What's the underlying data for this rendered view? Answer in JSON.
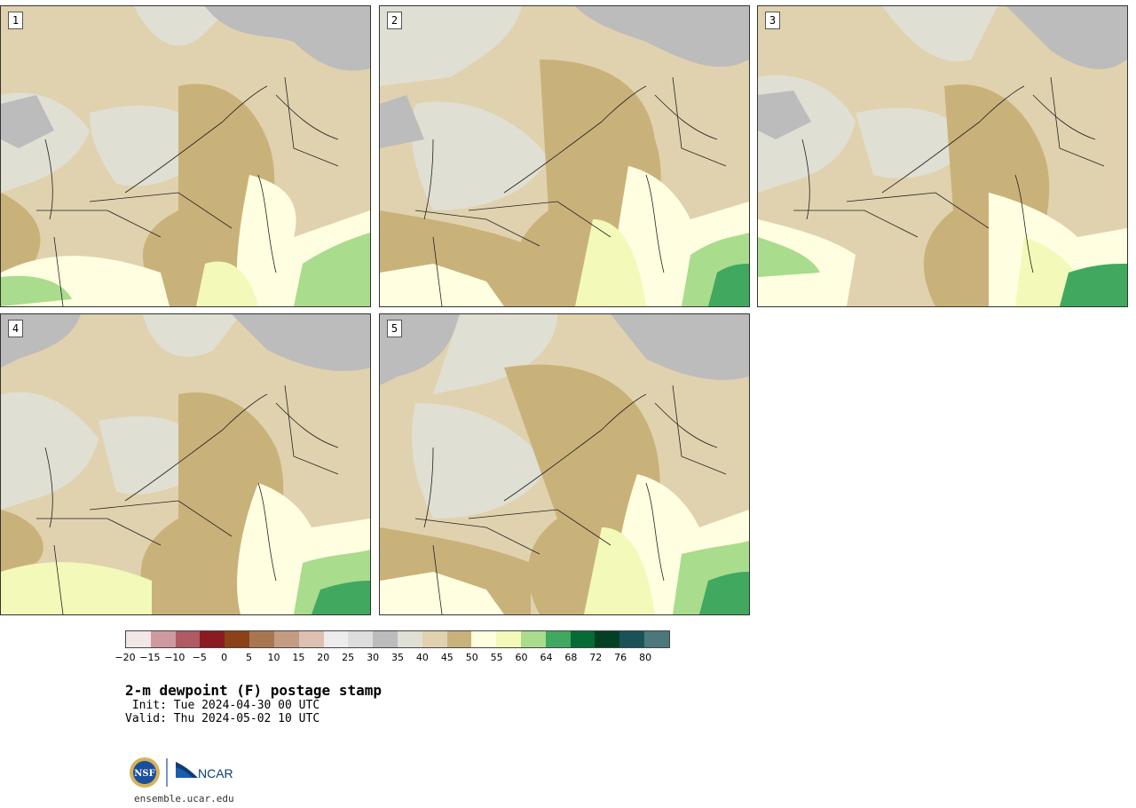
{
  "panels": [
    {
      "label": "1"
    },
    {
      "label": "2"
    },
    {
      "label": "3"
    },
    {
      "label": "4"
    },
    {
      "label": "5"
    }
  ],
  "colorbar": {
    "ticks": [
      "−20",
      "−15",
      "−10",
      "−5",
      "0",
      "5",
      "10",
      "15",
      "20",
      "25",
      "30",
      "35",
      "40",
      "45",
      "50",
      "55",
      "60",
      "64",
      "68",
      "72",
      "76",
      "80"
    ],
    "colors": [
      "#f2e6e6",
      "#cf9a9f",
      "#b05a62",
      "#8b1a22",
      "#8a4216",
      "#aa7650",
      "#c49c82",
      "#ddc0b2",
      "#ececec",
      "#dddddd",
      "#bcbcbc",
      "#e0dfd3",
      "#e0d2ae",
      "#c9b27a",
      "#fffee0",
      "#f3f9b8",
      "#a9dc8d",
      "#41a85f",
      "#076b36",
      "#023f24",
      "#1a5258",
      "#4b787b"
    ]
  },
  "title": "2-m dewpoint (F) postage stamp",
  "init": " Init: Tue 2024-04-30 00 UTC",
  "valid": "Valid: Thu 2024-05-02 10 UTC",
  "logos": {
    "nsf": "NSF",
    "ncar": "NCAR"
  },
  "site": "ensemble.ucar.edu"
}
